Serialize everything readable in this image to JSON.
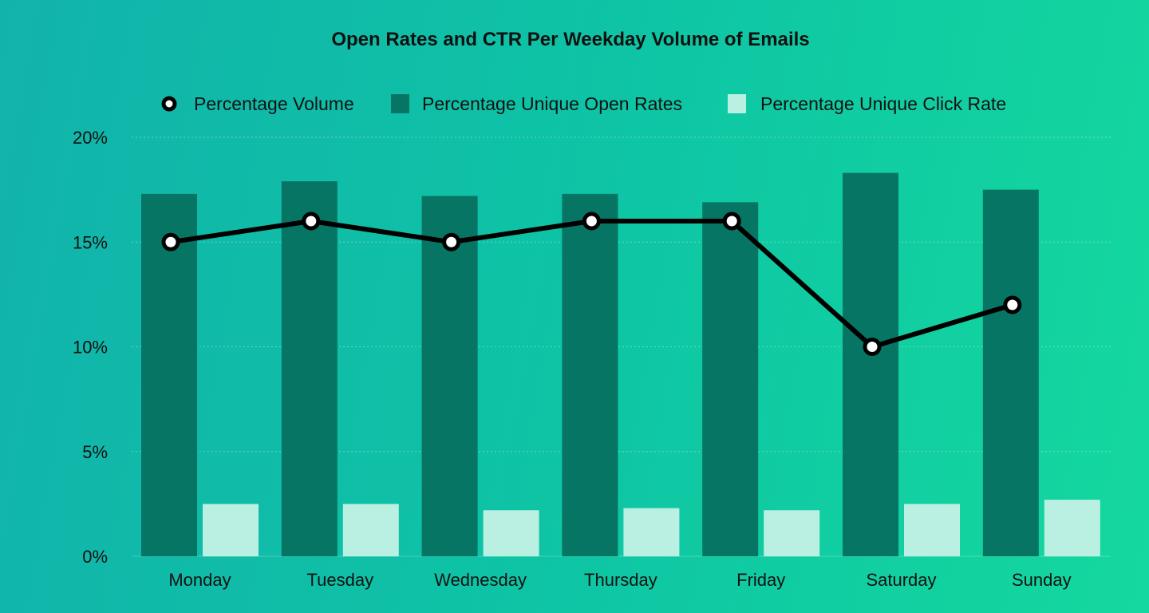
{
  "chart_data": {
    "type": "bar",
    "title": "Open Rates and CTR Per Weekday Volume of Emails",
    "categories": [
      "Monday",
      "Tuesday",
      "Wednesday",
      "Thursday",
      "Friday",
      "Saturday",
      "Sunday"
    ],
    "ylim": [
      0,
      20
    ],
    "yticks": [
      "0%",
      "5%",
      "10%",
      "15%",
      "20%"
    ],
    "grid": true,
    "legend_position": "top-center",
    "series": [
      {
        "name": "Percentage Volume",
        "kind": "line",
        "color": "#000000",
        "values": [
          15,
          16,
          15,
          16,
          16,
          10,
          12
        ]
      },
      {
        "name": "Percentage Unique Open Rates",
        "kind": "bar",
        "color": "#067563",
        "values": [
          17.3,
          17.9,
          17.2,
          17.3,
          16.9,
          18.3,
          17.5
        ]
      },
      {
        "name": "Percentage Unique Click Rate",
        "kind": "bar",
        "color": "#b9f0e2",
        "values": [
          2.5,
          2.5,
          2.2,
          2.3,
          2.2,
          2.5,
          2.7
        ]
      }
    ]
  }
}
